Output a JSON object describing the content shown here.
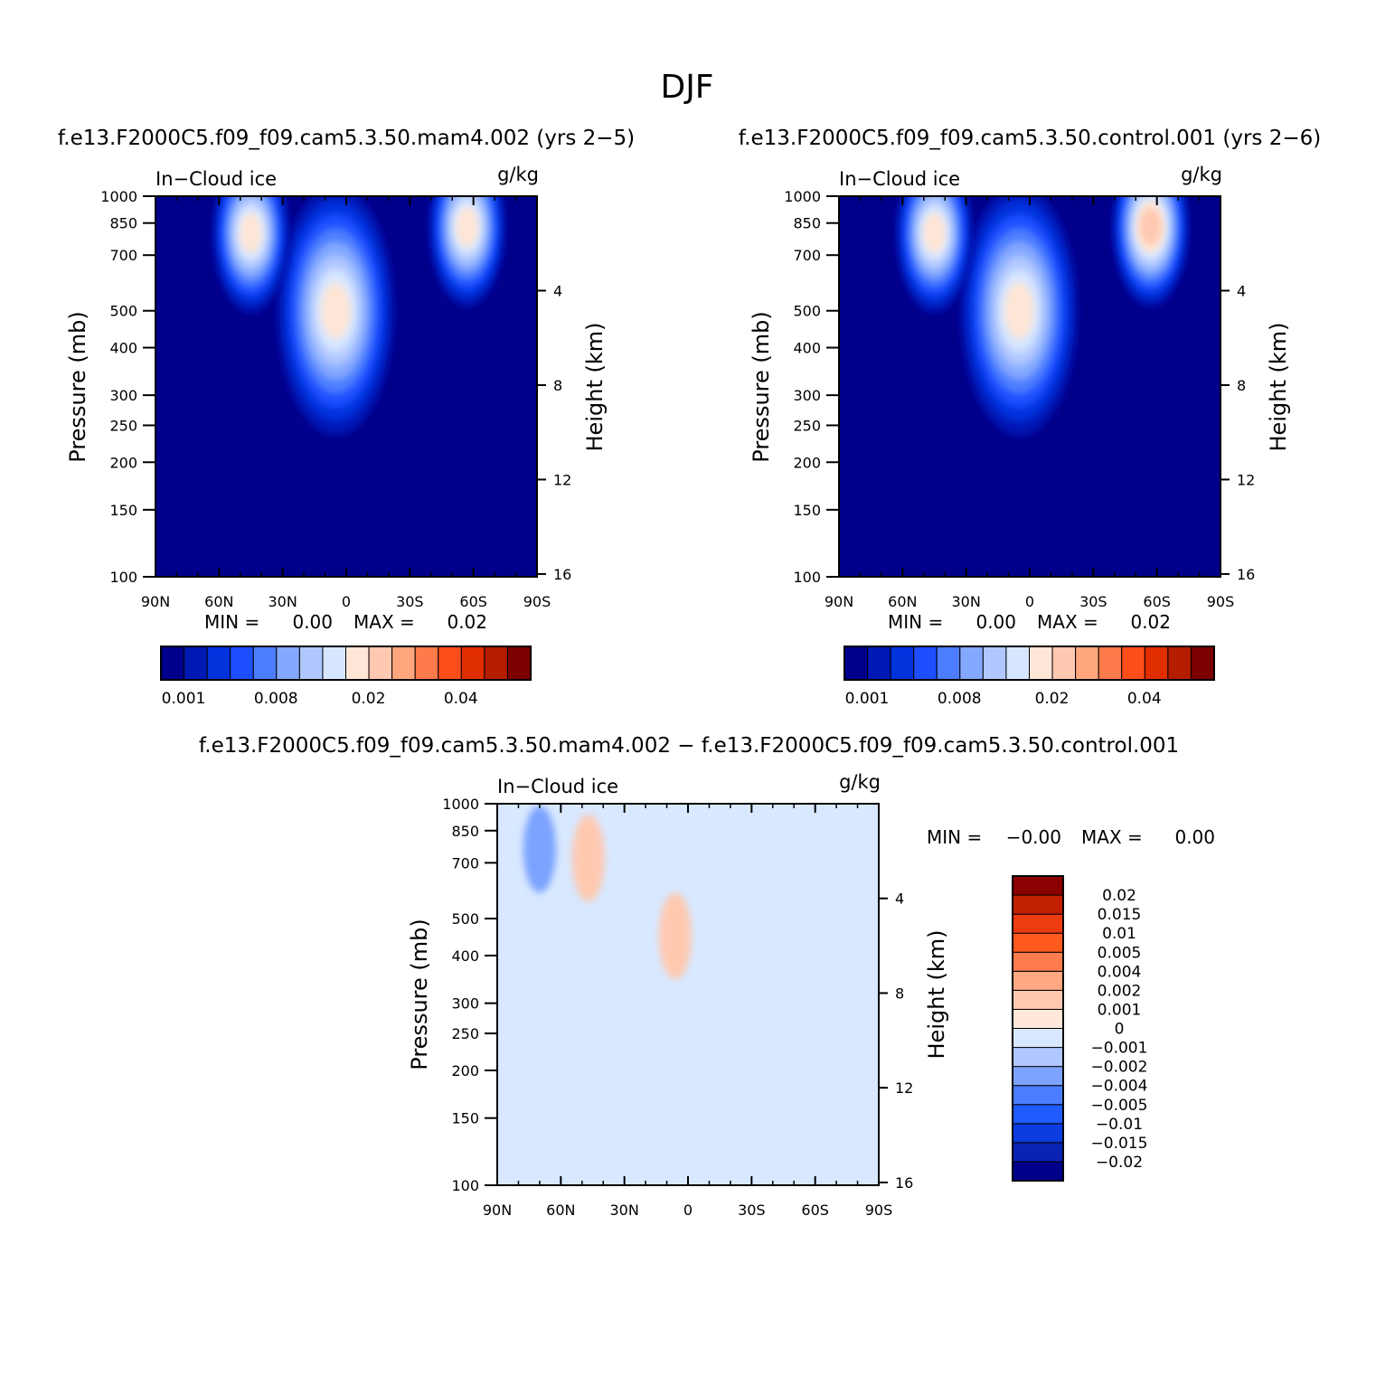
{
  "figure": {
    "title": "DJF",
    "diff_title": "f.e13.F2000C5.f09_f09.cam5.3.50.mam4.002 − f.e13.F2000C5.f09_f09.cam5.3.50.control.001"
  },
  "colors": {
    "abs_scale": [
      "#00008b",
      "#0018b4",
      "#0033dc",
      "#1d4fff",
      "#4d7dff",
      "#84a8ff",
      "#b0c8ff",
      "#d7e6ff",
      "#ffe6d6",
      "#ffc8b0",
      "#ffa67e",
      "#ff7a4a",
      "#ff4d1a",
      "#e02e00",
      "#b51d00",
      "#7d0000"
    ],
    "diff_scale": [
      "#00008b",
      "#0a23b4",
      "#0a3ce0",
      "#1f5bff",
      "#4a7dff",
      "#7ba3ff",
      "#b0c8ff",
      "#d8e8ff",
      "#ffe8da",
      "#ffc9b0",
      "#ffa882",
      "#ff7d4d",
      "#ff5a1e",
      "#ef3b10",
      "#c22000",
      "#8b0000"
    ]
  },
  "chart_data": [
    {
      "type": "heatmap",
      "subtitle": "f.e13.F2000C5.f09_f09.cam5.3.50.mam4.002 (yrs 2−5)",
      "variable_label": "In−Cloud ice",
      "units": "g/kg",
      "ylabel": "Pressure (mb)",
      "ylabel_right": "Height (km)",
      "x_ticks": [
        "90N",
        "60N",
        "30N",
        "0",
        "30S",
        "60S",
        "90S"
      ],
      "y_ticks": [
        "100",
        "150",
        "200",
        "250",
        "300",
        "400",
        "500",
        "700",
        "850",
        "1000"
      ],
      "y_ticks_right": [
        "16",
        "12",
        "8",
        "4"
      ],
      "ylim": [
        1000,
        100
      ],
      "xlim": [
        "90N",
        "90S"
      ],
      "min_label": "MIN =",
      "min_value": "0.00",
      "max_label": "MAX =",
      "max_value": "0.02",
      "colorbar_ticks": [
        "0.001",
        "0.008",
        "0.02",
        "0.04"
      ],
      "features": [
        {
          "lat": 5,
          "p": 500,
          "level": 8
        },
        {
          "lat": 45,
          "p": 800,
          "level": 8
        },
        {
          "lat": -57,
          "p": 830,
          "level": 8
        }
      ]
    },
    {
      "type": "heatmap",
      "subtitle": "f.e13.F2000C5.f09_f09.cam5.3.50.control.001 (yrs 2−6)",
      "variable_label": "In−Cloud ice",
      "units": "g/kg",
      "ylabel": "Pressure (mb)",
      "ylabel_right": "Height (km)",
      "x_ticks": [
        "90N",
        "60N",
        "30N",
        "0",
        "30S",
        "60S",
        "90S"
      ],
      "y_ticks": [
        "100",
        "150",
        "200",
        "250",
        "300",
        "400",
        "500",
        "700",
        "850",
        "1000"
      ],
      "y_ticks_right": [
        "16",
        "12",
        "8",
        "4"
      ],
      "ylim": [
        1000,
        100
      ],
      "xlim": [
        "90N",
        "90S"
      ],
      "min_label": "MIN =",
      "min_value": "0.00",
      "max_label": "MAX =",
      "max_value": "0.02",
      "colorbar_ticks": [
        "0.001",
        "0.008",
        "0.02",
        "0.04"
      ],
      "features": [
        {
          "lat": 5,
          "p": 500,
          "level": 8
        },
        {
          "lat": 45,
          "p": 800,
          "level": 8
        },
        {
          "lat": -57,
          "p": 830,
          "level": 9
        }
      ]
    },
    {
      "type": "heatmap",
      "variable_label": "In−Cloud ice",
      "units": "g/kg",
      "ylabel": "Pressure (mb)",
      "ylabel_right": "Height (km)",
      "x_ticks": [
        "90N",
        "60N",
        "30N",
        "0",
        "30S",
        "60S",
        "90S"
      ],
      "y_ticks": [
        "100",
        "150",
        "200",
        "250",
        "300",
        "400",
        "500",
        "700",
        "850",
        "1000"
      ],
      "y_ticks_right": [
        "16",
        "12",
        "8",
        "4"
      ],
      "ylim": [
        1000,
        100
      ],
      "xlim": [
        "90N",
        "90S"
      ],
      "min_label": "MIN =",
      "min_value": "−0.00",
      "max_label": "MAX =",
      "max_value": "0.00",
      "colorbar_ticks": [
        "0.02",
        "0.015",
        "0.01",
        "0.005",
        "0.004",
        "0.002",
        "0.001",
        "0",
        "−0.001",
        "−0.002",
        "−0.004",
        "−0.005",
        "−0.01",
        "−0.015",
        "−0.02"
      ],
      "features": [
        {
          "lat": 6,
          "p": 450,
          "level": 9
        },
        {
          "lat": 47,
          "p": 720,
          "level": 9
        },
        {
          "lat": 70,
          "p": 760,
          "level": 5
        }
      ]
    }
  ]
}
